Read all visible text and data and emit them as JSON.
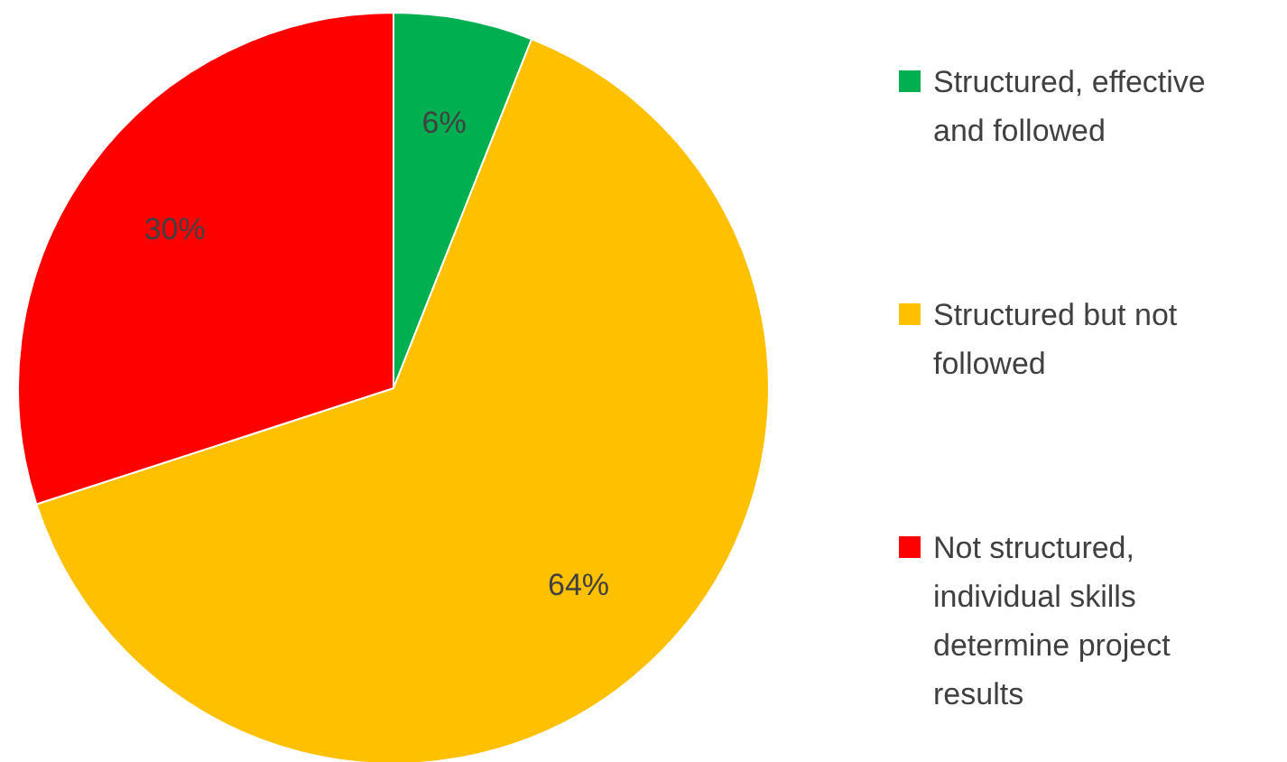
{
  "chart_data": {
    "type": "pie",
    "categories": [
      "Structured, effective and followed",
      "Structured but not followed",
      "Not structured, individual skills determine project results"
    ],
    "values": [
      6,
      64,
      30
    ],
    "colors": [
      "#00b050",
      "#ffc000",
      "#ff0000"
    ],
    "value_labels": [
      "6%",
      "64%",
      "30%"
    ],
    "legend": "right"
  }
}
